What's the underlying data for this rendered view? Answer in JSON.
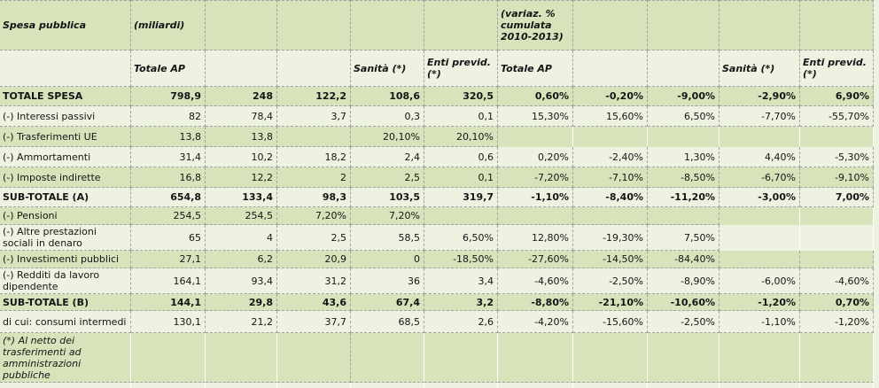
{
  "chart_data": {
    "type": "table",
    "title": "Spesa pubblica",
    "unit_label": "(miliardi)",
    "variation_label": "(variaz. % cumulata 2010-2013)",
    "column_headers": [
      "Totale AP",
      "",
      "",
      "Sanità (*)",
      "Enti previd. (*)",
      "Totale AP",
      "",
      "",
      "Sanità (*)",
      "Enti previd. (*)"
    ],
    "rows": [
      {
        "label": "TOTALE SPESA",
        "bold": true,
        "values": [
          "798,9",
          "248",
          "122,2",
          "108,6",
          "320,5",
          "0,60%",
          "-0,20%",
          "-9,00%",
          "-2,90%",
          "6,90%"
        ]
      },
      {
        "label": "(-) Interessi passivi",
        "bold": false,
        "values": [
          "82",
          "78,4",
          "3,7",
          "0,3",
          "0,1",
          "15,30%",
          "15,60%",
          "6,50%",
          "-7,70%",
          "-55,70%"
        ]
      },
      {
        "label": "(-) Trasferimenti UE",
        "bold": false,
        "values": [
          "13,8",
          "13,8",
          "",
          "20,10%",
          "20,10%",
          "",
          "",
          "",
          "",
          ""
        ]
      },
      {
        "label": "(-) Ammortamenti",
        "bold": false,
        "values": [
          "31,4",
          "10,2",
          "18,2",
          "2,4",
          "0,6",
          "0,20%",
          "-2,40%",
          "1,30%",
          "4,40%",
          "-5,30%"
        ]
      },
      {
        "label": "(-) Imposte indirette",
        "bold": false,
        "values": [
          "16,8",
          "12,2",
          "2",
          "2,5",
          "0,1",
          "-7,20%",
          "-7,10%",
          "-8,50%",
          "-6,70%",
          "-9,10%"
        ]
      },
      {
        "label": "SUB-TOTALE (A)",
        "bold": true,
        "values": [
          "654,8",
          "133,4",
          "98,3",
          "103,5",
          "319,7",
          "-1,10%",
          "-8,40%",
          "-11,20%",
          "-3,00%",
          "7,00%"
        ]
      },
      {
        "label": "(-) Pensioni",
        "bold": false,
        "values": [
          "254,5",
          "254,5",
          "7,20%",
          "7,20%",
          "",
          "",
          "",
          "",
          "",
          ""
        ]
      },
      {
        "label": "(-) Altre prestazioni sociali in denaro",
        "bold": false,
        "values": [
          "65",
          "4",
          "2,5",
          "58,5",
          "6,50%",
          "12,80%",
          "-19,30%",
          "7,50%",
          "",
          ""
        ]
      },
      {
        "label": "(-) Investimenti pubblici",
        "bold": false,
        "values": [
          "27,1",
          "6,2",
          "20,9",
          "0",
          "-18,50%",
          "-27,60%",
          "-14,50%",
          "-84,40%",
          "",
          ""
        ]
      },
      {
        "label": "(-) Redditi da lavoro dipendente",
        "bold": false,
        "values": [
          "164,1",
          "93,4",
          "31,2",
          "36",
          "3,4",
          "-4,60%",
          "-2,50%",
          "-8,90%",
          "-6,00%",
          "-4,60%"
        ]
      },
      {
        "label": "SUB-TOTALE (B)",
        "bold": true,
        "values": [
          "144,1",
          "29,8",
          "43,6",
          "67,4",
          "3,2",
          "-8,80%",
          "-21,10%",
          "-10,60%",
          "-1,20%",
          "0,70%"
        ]
      },
      {
        "label": "di cui: consumi intermedi",
        "bold": false,
        "values": [
          "130,1",
          "21,2",
          "37,7",
          "68,5",
          "2,6",
          "-4,20%",
          "-15,60%",
          "-2,50%",
          "-1,10%",
          "-1,20%"
        ]
      }
    ],
    "footnote": "(*) Al netto dei trasferimenti ad amministrazioni pubbliche"
  },
  "colors": {
    "row_green": "#d7e3bb",
    "row_cream": "#edf2e1",
    "grid_dash": "#a2a2a2",
    "text": "#151515"
  }
}
